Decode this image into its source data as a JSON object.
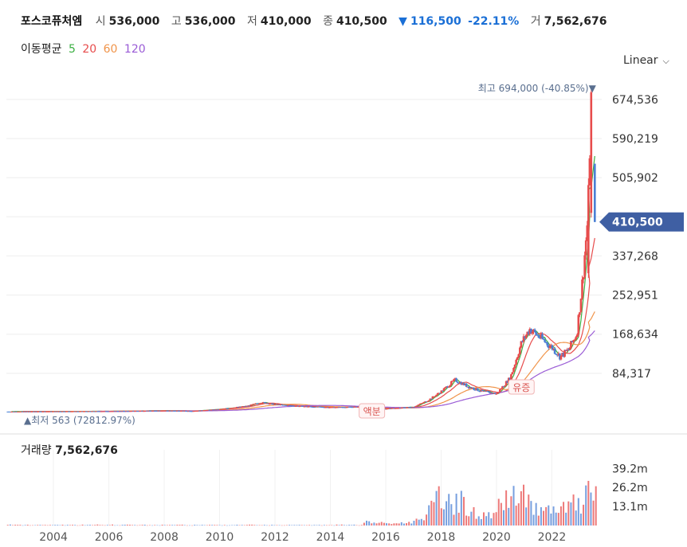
{
  "header": {
    "name": "포스코퓨처엠",
    "open_label": "시",
    "open": "536,000",
    "high_label": "고",
    "high": "536,000",
    "low_label": "저",
    "low": "410,000",
    "close_label": "종",
    "close": "410,500",
    "change_arrow": "▼",
    "change": "116,500",
    "change_pct": "-22.11%",
    "volume_label": "거",
    "volume": "7,562,676"
  },
  "ma_legend": {
    "title": "이동평균",
    "items": [
      {
        "label": "5",
        "color": "#3cb043"
      },
      {
        "label": "20",
        "color": "#e74c4c"
      },
      {
        "label": "60",
        "color": "#f0944a"
      },
      {
        "label": "120",
        "color": "#9a5cd6"
      }
    ]
  },
  "scale": {
    "label": "Linear"
  },
  "annotations": {
    "high": {
      "label": "최고",
      "value": "694,000 (-40.85%)",
      "arrow": "▼"
    },
    "low": {
      "arrow": "▲",
      "label": "최저",
      "value": "563 (72812.97%)"
    },
    "split": "액분",
    "rights": "유증",
    "current_price": "410,500"
  },
  "volume_header": {
    "label": "거래량",
    "value": "7,562,676"
  },
  "colors": {
    "up": "#e74c4c",
    "down": "#4a7fd4",
    "badge": "#3f5fa3",
    "grid": "#eeeeee"
  },
  "chart_data": {
    "type": "candlestick",
    "y_ticks": [
      "674,536",
      "590,219",
      "505,902",
      "421,585",
      "337,268",
      "252,951",
      "168,634",
      "84,317"
    ],
    "y_tick_values": [
      674536,
      590219,
      505902,
      421585,
      337268,
      252951,
      168634,
      84317
    ],
    "ylim": [
      0,
      700000
    ],
    "x_ticks": [
      "2004",
      "2006",
      "2008",
      "2010",
      "2012",
      "2014",
      "2016",
      "2018",
      "2020",
      "2022"
    ],
    "xlim": [
      2002.3,
      2023.8
    ],
    "close_series": [
      {
        "x": 2002.4,
        "y": 1800
      },
      {
        "x": 2004.0,
        "y": 2200
      },
      {
        "x": 2006.0,
        "y": 2600
      },
      {
        "x": 2008.0,
        "y": 4000
      },
      {
        "x": 2009.0,
        "y": 3000
      },
      {
        "x": 2010.0,
        "y": 7000
      },
      {
        "x": 2011.0,
        "y": 14000
      },
      {
        "x": 2011.5,
        "y": 22000
      },
      {
        "x": 2012.0,
        "y": 17000
      },
      {
        "x": 2013.0,
        "y": 13000
      },
      {
        "x": 2014.0,
        "y": 11000
      },
      {
        "x": 2015.0,
        "y": 12000
      },
      {
        "x": 2016.0,
        "y": 8000
      },
      {
        "x": 2017.0,
        "y": 12000
      },
      {
        "x": 2017.5,
        "y": 25000
      },
      {
        "x": 2018.0,
        "y": 45000
      },
      {
        "x": 2018.5,
        "y": 70000
      },
      {
        "x": 2019.0,
        "y": 55000
      },
      {
        "x": 2019.5,
        "y": 45000
      },
      {
        "x": 2020.0,
        "y": 40000
      },
      {
        "x": 2020.5,
        "y": 75000
      },
      {
        "x": 2020.9,
        "y": 150000
      },
      {
        "x": 2021.2,
        "y": 180000
      },
      {
        "x": 2021.5,
        "y": 165000
      },
      {
        "x": 2021.8,
        "y": 150000
      },
      {
        "x": 2022.0,
        "y": 140000
      },
      {
        "x": 2022.3,
        "y": 120000
      },
      {
        "x": 2022.6,
        "y": 135000
      },
      {
        "x": 2022.9,
        "y": 170000
      },
      {
        "x": 2023.1,
        "y": 280000
      },
      {
        "x": 2023.3,
        "y": 420000
      },
      {
        "x": 2023.42,
        "y": 694000
      },
      {
        "x": 2023.5,
        "y": 536000
      },
      {
        "x": 2023.55,
        "y": 410500
      }
    ],
    "volume": {
      "ticks": [
        "39.2m",
        "26.2m",
        "13.1m"
      ],
      "tick_values": [
        39200000,
        26200000,
        13100000
      ],
      "ylim": [
        0,
        52000000
      ],
      "bars": [
        {
          "x": 2015.2,
          "v": 4000000
        },
        {
          "x": 2015.5,
          "v": 3000000
        },
        {
          "x": 2016.2,
          "v": 2000000
        },
        {
          "x": 2016.9,
          "v": 3000000
        },
        {
          "x": 2017.3,
          "v": 8000000
        },
        {
          "x": 2017.6,
          "v": 15000000
        },
        {
          "x": 2017.9,
          "v": 30000000
        },
        {
          "x": 2018.1,
          "v": 22000000
        },
        {
          "x": 2018.2,
          "v": 40000000
        },
        {
          "x": 2018.4,
          "v": 18000000
        },
        {
          "x": 2018.7,
          "v": 26000000
        },
        {
          "x": 2019.0,
          "v": 14000000
        },
        {
          "x": 2019.3,
          "v": 12000000
        },
        {
          "x": 2019.6,
          "v": 9000000
        },
        {
          "x": 2019.9,
          "v": 13000000
        },
        {
          "x": 2020.3,
          "v": 26000000
        },
        {
          "x": 2020.5,
          "v": 33000000
        },
        {
          "x": 2020.8,
          "v": 20000000
        },
        {
          "x": 2021.0,
          "v": 36000000
        },
        {
          "x": 2021.3,
          "v": 22000000
        },
        {
          "x": 2021.6,
          "v": 14000000
        },
        {
          "x": 2021.9,
          "v": 15000000
        },
        {
          "x": 2022.2,
          "v": 13000000
        },
        {
          "x": 2022.5,
          "v": 18000000
        },
        {
          "x": 2022.8,
          "v": 22000000
        },
        {
          "x": 2023.0,
          "v": 20000000
        },
        {
          "x": 2023.2,
          "v": 25000000
        },
        {
          "x": 2023.35,
          "v": 38000000
        },
        {
          "x": 2023.45,
          "v": 22000000
        },
        {
          "x": 2023.55,
          "v": 39000000
        }
      ]
    }
  }
}
